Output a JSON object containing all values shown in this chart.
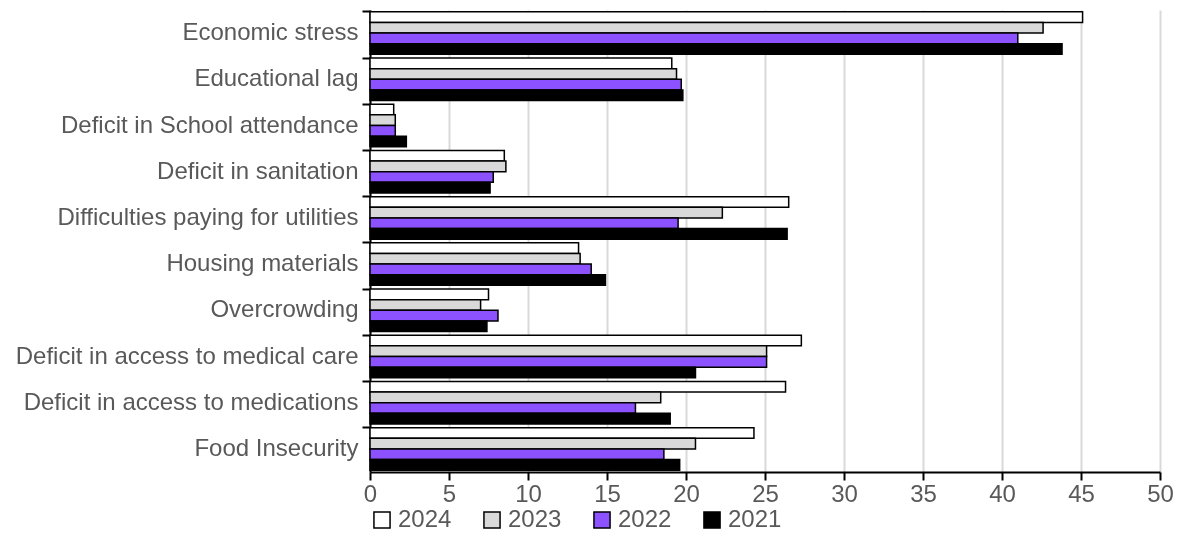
{
  "chart_data": {
    "type": "bar",
    "orientation": "horizontal",
    "categories": [
      "Economic stress",
      "Educational lag",
      "Deficit in School attendance",
      "Deficit in sanitation",
      "Difficulties paying for utilities",
      "Housing materials",
      "Overcrowding",
      "Deficit in access  to medical care",
      "Deficit in access to medications",
      "Food Insecurity"
    ],
    "series": [
      {
        "name": "2024",
        "color": "#ffffff",
        "values": [
          45.1,
          19.1,
          1.5,
          8.5,
          26.5,
          13.2,
          7.5,
          27.3,
          26.3,
          24.3
        ]
      },
      {
        "name": "2023",
        "color": "#d9d9d9",
        "values": [
          42.6,
          19.4,
          1.6,
          8.6,
          22.3,
          13.3,
          7.0,
          25.1,
          18.4,
          20.6
        ]
      },
      {
        "name": "2022",
        "color": "#8c52ff",
        "values": [
          41.0,
          19.7,
          1.6,
          7.8,
          19.5,
          14.0,
          8.1,
          25.1,
          16.8,
          18.6
        ]
      },
      {
        "name": "2021",
        "color": "#000000",
        "values": [
          43.8,
          19.8,
          2.3,
          7.6,
          26.4,
          14.9,
          7.4,
          20.6,
          19.0,
          19.6
        ]
      }
    ],
    "xlim": [
      0,
      50
    ],
    "xticks": [
      0,
      5,
      10,
      15,
      20,
      25,
      30,
      35,
      40,
      45,
      50
    ],
    "grid": "x",
    "legend": "bottom"
  }
}
